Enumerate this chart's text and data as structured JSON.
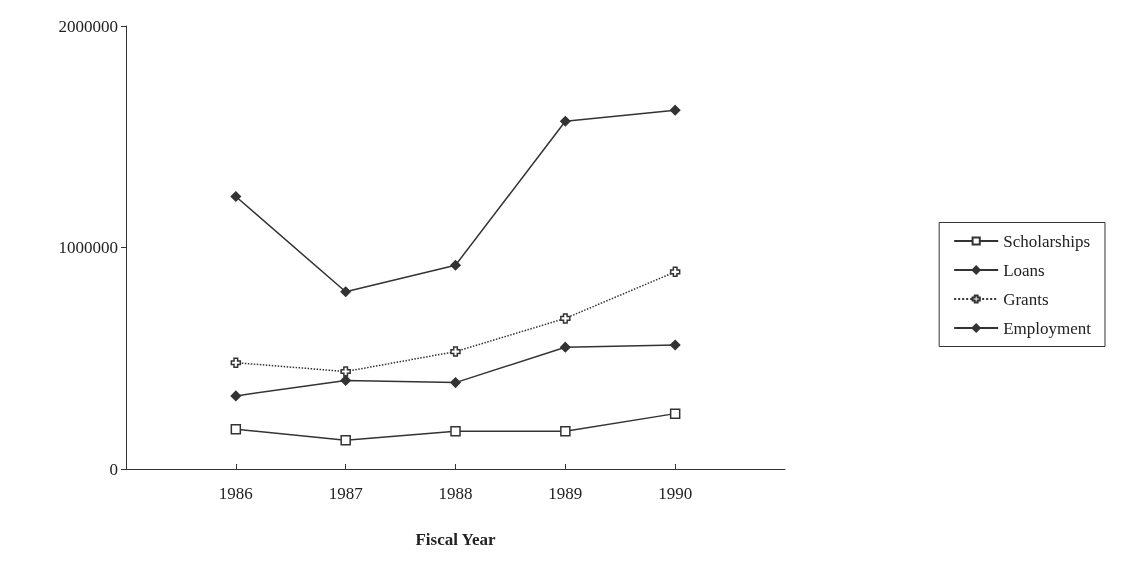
{
  "chart_data": {
    "type": "line",
    "xlabel": "Fiscal Year",
    "x": [
      1986,
      1987,
      1988,
      1989,
      1990
    ],
    "xlim": [
      1985,
      1991
    ],
    "xticks": [
      1986,
      1987,
      1988,
      1989,
      1990
    ],
    "ylim": [
      0,
      2000000
    ],
    "yticks": [
      0,
      1000000,
      2000000
    ],
    "grid": false,
    "legend": "right",
    "series": [
      {
        "name": "Scholarships",
        "color": "#333333",
        "marker": "square",
        "line_style": "solid",
        "values": [
          180000,
          130000,
          170000,
          170000,
          250000
        ]
      },
      {
        "name": "Loans",
        "color": "#333333",
        "marker": "diamond",
        "line_style": "solid",
        "values": [
          1230000,
          800000,
          920000,
          1570000,
          1620000
        ]
      },
      {
        "name": "Grants",
        "color": "#333333",
        "marker": "cross",
        "line_style": "dotted",
        "values": [
          480000,
          440000,
          530000,
          680000,
          890000
        ]
      },
      {
        "name": "Employment",
        "color": "#333333",
        "marker": "diamond",
        "line_style": "solid",
        "values": [
          330000,
          400000,
          390000,
          550000,
          560000
        ]
      }
    ]
  }
}
